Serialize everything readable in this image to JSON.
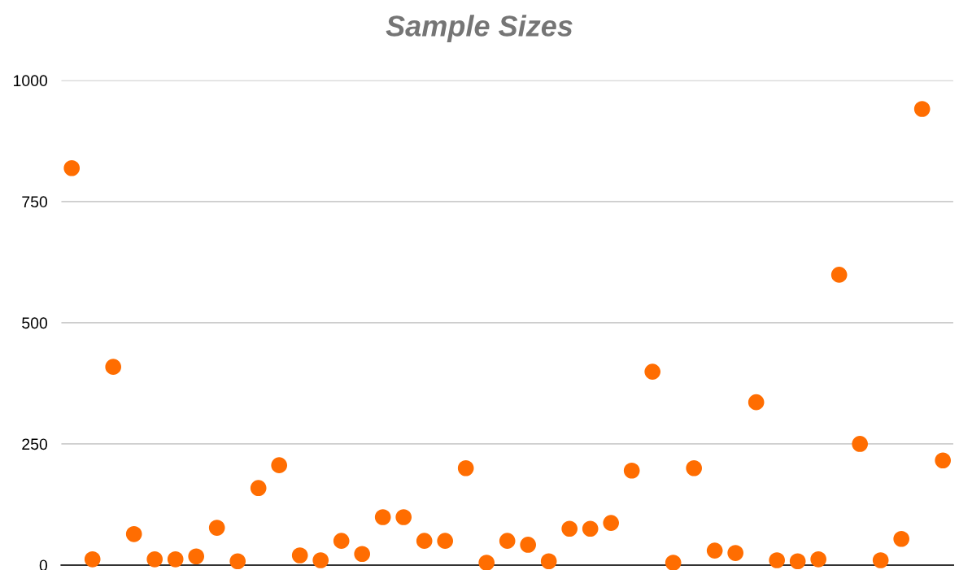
{
  "chart_data": {
    "type": "scatter",
    "title": "Sample Sizes",
    "categories": [
      null,
      null,
      null,
      null,
      null,
      null,
      null,
      null,
      null,
      null,
      null,
      null,
      null,
      null,
      null,
      null,
      null,
      null,
      null,
      null,
      null,
      null,
      null,
      null,
      null,
      null,
      null,
      null,
      null,
      null,
      null,
      null,
      null,
      null,
      null,
      null,
      null,
      null,
      null,
      null,
      null,
      null,
      null
    ],
    "series": [
      {
        "color": "#ff6d01",
        "values": [
          819,
          12,
          409,
          64,
          12,
          12,
          18,
          77,
          8,
          159,
          206,
          20,
          10,
          50,
          23,
          99,
          99,
          50,
          50,
          200,
          5,
          50,
          42,
          8,
          75,
          75,
          87,
          195,
          399,
          5,
          200,
          30,
          25,
          336,
          10,
          8,
          12,
          599,
          250,
          10,
          54,
          941,
          216
        ]
      }
    ],
    "ylim": [
      0,
      1000
    ],
    "yticks": [
      0,
      250,
      500,
      750,
      1000
    ],
    "grid": "y",
    "marker": "circle"
  }
}
